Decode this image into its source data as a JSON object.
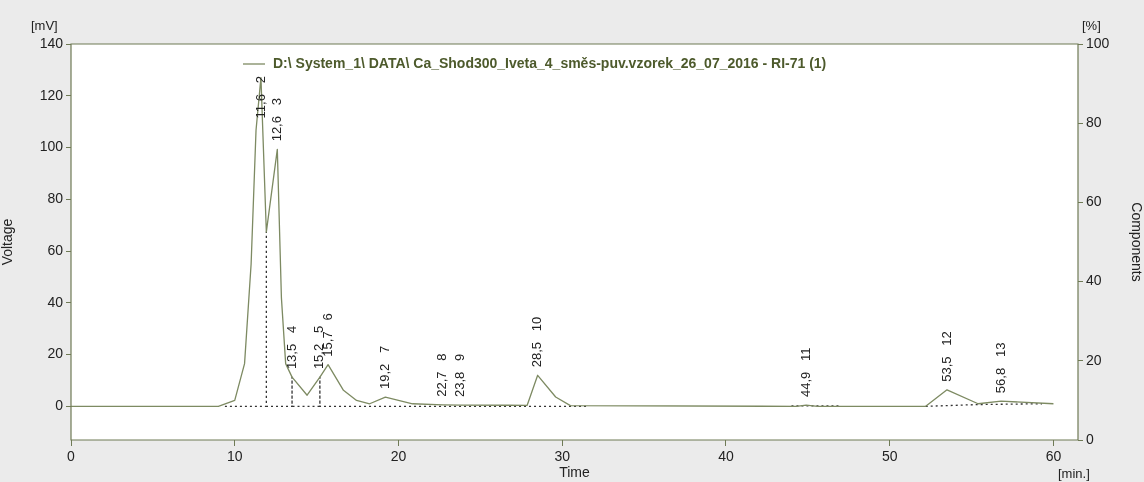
{
  "chart_data": {
    "type": "line",
    "xlabel": "Time",
    "ylabel": "Voltage",
    "y2label": "Components",
    "xlim": [
      0,
      61.5
    ],
    "xticks": [
      0,
      10,
      20,
      30,
      40,
      50,
      60
    ],
    "ylim": [
      -13,
      140
    ],
    "yticks": [
      0,
      20,
      40,
      60,
      80,
      100,
      120,
      140
    ],
    "y2lim": [
      0,
      100
    ],
    "y2ticks": [
      0,
      20,
      40,
      60,
      80,
      100
    ],
    "grid": false,
    "legend": "top right",
    "marker": "none",
    "series": [
      {
        "name": "D:\\ System_1\\ DATA\\ Ca_Shod300_Iveta_4_směs-puv.vzorek_26_07_2016 - RI-71 (1)",
        "color": "#7d8a62",
        "line_style": "solid",
        "x": [
          0,
          9,
          10,
          10.6,
          11,
          11.3,
          11.6,
          11.93,
          12.6,
          12.85,
          13.11,
          13.5,
          14.42,
          15.2,
          15.7,
          16.64,
          17.44,
          18.24,
          19.2,
          20.86,
          22.7,
          23.8,
          27.86,
          28.5,
          29.6,
          30.5,
          44.3,
          44.9,
          45.6,
          52.2,
          53.5,
          55.4,
          56.8,
          60
        ],
        "values": [
          0,
          0,
          2.3,
          16.5,
          55,
          106.7,
          127,
          67.4,
          99.3,
          42,
          16.5,
          11.3,
          4.3,
          11.3,
          16.1,
          6.2,
          2.3,
          1,
          3.6,
          1,
          0.6,
          0.5,
          0.4,
          12,
          3.6,
          0.3,
          0,
          0.5,
          0,
          0,
          6.4,
          1,
          2,
          1
        ]
      },
      {
        "color": "#333333",
        "line_style": "dotted",
        "x": [
          9.4,
          11.93,
          11.93,
          11.93,
          13.5,
          13.5,
          13.5,
          15.2,
          15.2,
          15.2,
          31.5,
          31.6,
          44,
          47,
          47.1,
          52.2,
          55.4,
          59.3
        ],
        "values": [
          0,
          0,
          67.4,
          0,
          0,
          11.3,
          0,
          0,
          11.3,
          0,
          0,
          null,
          0.2,
          0.2,
          null,
          0,
          0.7,
          1
        ]
      }
    ],
    "annotations": [
      "[mV]",
      "[%]",
      "[min.]",
      {
        "text": "11,6   2",
        "x": 11.6,
        "y": 127
      },
      {
        "text": "12,6   3",
        "x": 12.6,
        "y": 99.3
      },
      {
        "text": "13,5   4",
        "x": 13.5,
        "y": 11.3
      },
      {
        "text": "15,2   5",
        "x": 15.2,
        "y": 11.3
      },
      {
        "text": "15,7   6",
        "x": 15.7,
        "y": 16.1
      },
      {
        "text": "19,2   7",
        "x": 19.2,
        "y": 3.6
      },
      {
        "text": "22,7   8",
        "x": 22.7,
        "y": 0.6
      },
      {
        "text": "23,8   9",
        "x": 23.8,
        "y": 0.5
      },
      {
        "text": "28,5   10",
        "x": 28.5,
        "y": 12
      },
      {
        "text": "44,9   11",
        "x": 44.9,
        "y": 0.5
      },
      {
        "text": "53,5   12",
        "x": 53.5,
        "y": 6.4
      },
      {
        "text": "56,8   13",
        "x": 56.8,
        "y": 2
      }
    ]
  }
}
